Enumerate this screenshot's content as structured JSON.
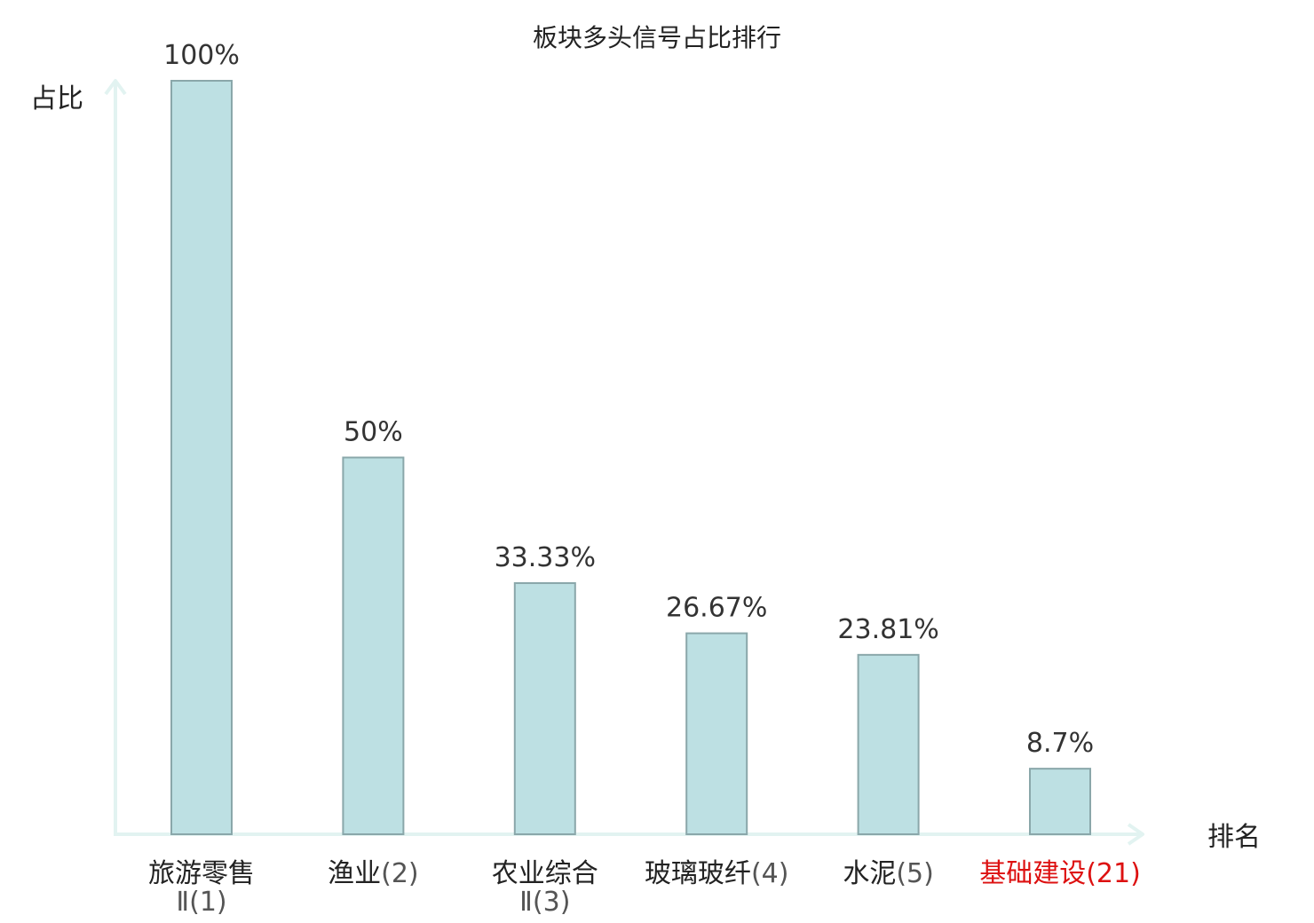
{
  "chart_data": {
    "type": "bar",
    "title": "板块多头信号占比排行",
    "ylabel": "占比",
    "xlabel": "排名",
    "ylim": [
      0,
      100
    ],
    "value_suffix": "%",
    "grid": false,
    "categories": [
      {
        "name": "旅游零售Ⅱ",
        "rank": "(1)",
        "highlight": false
      },
      {
        "name": "渔业",
        "rank": "(2)",
        "highlight": false
      },
      {
        "name": "农业综合Ⅱ",
        "rank": "(3)",
        "highlight": false
      },
      {
        "name": "玻璃玻纤",
        "rank": "(4)",
        "highlight": false
      },
      {
        "name": "水泥",
        "rank": "(5)",
        "highlight": false
      },
      {
        "name": "基础建设",
        "rank": "(21)",
        "highlight": true
      }
    ],
    "values": [
      100,
      50,
      33.33,
      26.67,
      23.81,
      8.7
    ],
    "value_labels": [
      "100%",
      "50%",
      "33.33%",
      "26.67%",
      "23.81%",
      "8.7%"
    ]
  },
  "colors": {
    "bar_fill": "#bde0e3",
    "bar_stroke": "#8aa7aa",
    "axis": "#e2f3f1",
    "highlight": "#dd1111"
  }
}
